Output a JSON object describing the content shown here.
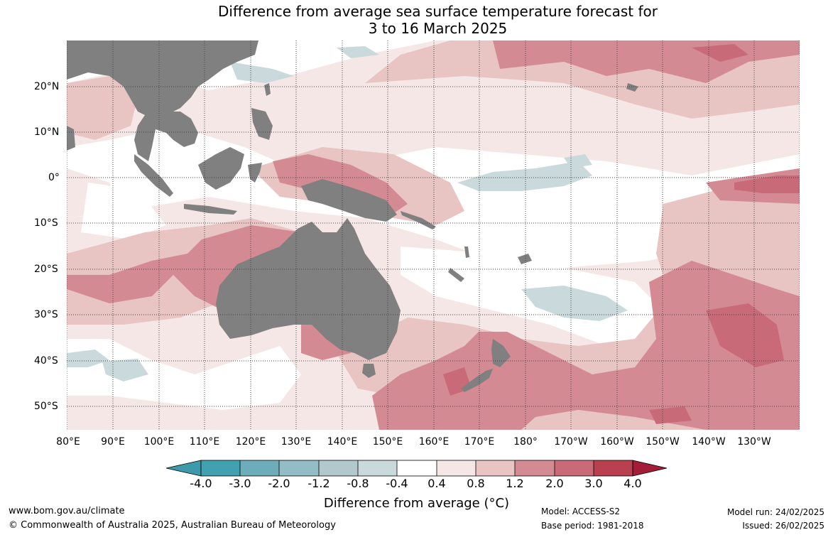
{
  "title_line1": "Difference from average sea surface temperature forecast for",
  "title_line2": "3 to 16 March 2025",
  "lon_labels": [
    "80°E",
    "90°E",
    "100°E",
    "110°E",
    "120°E",
    "130°E",
    "140°E",
    "150°E",
    "160°E",
    "170°E",
    "180°",
    "170°W",
    "160°W",
    "150°W",
    "140°W",
    "130°W"
  ],
  "lat_labels": [
    "20°N",
    "10°N",
    "0°",
    "10°S",
    "20°S",
    "30°S",
    "40°S",
    "50°S"
  ],
  "colorbar": {
    "title": "Difference from average (°C)",
    "ticks": [
      "-4.0",
      "-3.0",
      "-2.0",
      "-1.2",
      "-0.8",
      "-0.4",
      "0.4",
      "0.8",
      "1.2",
      "2.0",
      "3.0",
      "4.0"
    ],
    "colors": [
      "#3d9aab",
      "#41a1b0",
      "#6dadba",
      "#93bcc4",
      "#b1c8cc",
      "#cad9dc",
      "#ffffff",
      "#f5e7e6",
      "#e8c5c3",
      "#d48a93",
      "#c86a78",
      "#b8404f",
      "#a31d38"
    ]
  },
  "colors": {
    "land": "#808080",
    "grid": "#444444"
  },
  "footer": {
    "website": "www.bom.gov.au/climate",
    "copyright": "© Commonwealth of Australia 2025, Australian Bureau of Meteorology",
    "model": "Model: ACCESS-S2",
    "base_period": "Base period: 1981-2018",
    "model_run": "Model run: 24/02/2025",
    "issued": "Issued: 26/02/2025"
  }
}
